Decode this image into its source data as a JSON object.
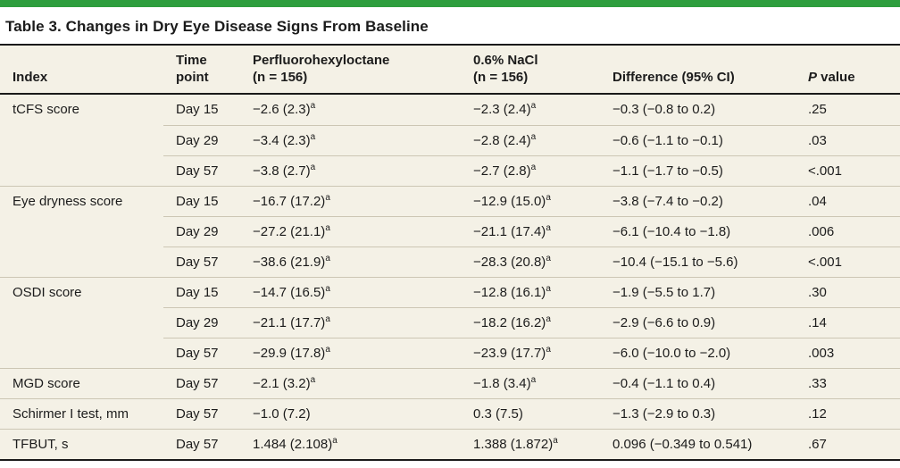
{
  "theme": {
    "accent_green": "#2e9e3e",
    "table_background": "#f4f1e6",
    "rule_color": "#1a1a1a",
    "row_separator": "#ccc6b4"
  },
  "title": "Table 3. Changes in Dry Eye Disease Signs From Baseline",
  "columns": {
    "index": "Index",
    "time_point": "Time point",
    "pfh_name": "Perfluorohexyloctane",
    "pfh_n": "(n = 156)",
    "nacl_name": "0.6% NaCl",
    "nacl_n": "(n = 156)",
    "difference": "Difference (95% CI)",
    "p_label_italic": "P",
    "p_label_rest": " value"
  },
  "rows": [
    {
      "index": "tCFS score",
      "time": "Day 15",
      "pfh": "−2.6 (2.3)",
      "pfh_sup": "a",
      "nacl": "−2.3 (2.4)",
      "nacl_sup": "a",
      "diff": "−0.3 (−0.8 to 0.2)",
      "p": ".25"
    },
    {
      "index": "",
      "time": "Day 29",
      "pfh": "−3.4 (2.3)",
      "pfh_sup": "a",
      "nacl": "−2.8 (2.4)",
      "nacl_sup": "a",
      "diff": "−0.6 (−1.1 to −0.1)",
      "p": ".03"
    },
    {
      "index": "",
      "time": "Day 57",
      "pfh": "−3.8 (2.7)",
      "pfh_sup": "a",
      "nacl": "−2.7 (2.8)",
      "nacl_sup": "a",
      "diff": "−1.1 (−1.7 to −0.5)",
      "p": "<.001"
    },
    {
      "index": "Eye dryness score",
      "time": "Day 15",
      "pfh": "−16.7 (17.2)",
      "pfh_sup": "a",
      "nacl": "−12.9 (15.0)",
      "nacl_sup": "a",
      "diff": "−3.8 (−7.4 to −0.2)",
      "p": ".04"
    },
    {
      "index": "",
      "time": "Day 29",
      "pfh": "−27.2 (21.1)",
      "pfh_sup": "a",
      "nacl": "−21.1 (17.4)",
      "nacl_sup": "a",
      "diff": "−6.1 (−10.4 to −1.8)",
      "p": ".006"
    },
    {
      "index": "",
      "time": "Day 57",
      "pfh": "−38.6 (21.9)",
      "pfh_sup": "a",
      "nacl": "−28.3 (20.8)",
      "nacl_sup": "a",
      "diff": "−10.4 (−15.1 to −5.6)",
      "p": "<.001"
    },
    {
      "index": "OSDI score",
      "time": "Day 15",
      "pfh": "−14.7 (16.5)",
      "pfh_sup": "a",
      "nacl": "−12.8 (16.1)",
      "nacl_sup": "a",
      "diff": "−1.9 (−5.5 to 1.7)",
      "p": ".30"
    },
    {
      "index": "",
      "time": "Day 29",
      "pfh": "−21.1 (17.7)",
      "pfh_sup": "a",
      "nacl": "−18.2 (16.2)",
      "nacl_sup": "a",
      "diff": "−2.9 (−6.6 to 0.9)",
      "p": ".14"
    },
    {
      "index": "",
      "time": "Day 57",
      "pfh": "−29.9 (17.8)",
      "pfh_sup": "a",
      "nacl": "−23.9 (17.7)",
      "nacl_sup": "a",
      "diff": "−6.0 (−10.0 to −2.0)",
      "p": ".003"
    },
    {
      "index": "MGD score",
      "time": "Day 57",
      "pfh": "−2.1 (3.2)",
      "pfh_sup": "a",
      "nacl": "−1.8 (3.4)",
      "nacl_sup": "a",
      "diff": "−0.4 (−1.1 to 0.4)",
      "p": ".33"
    },
    {
      "index": "Schirmer I test, mm",
      "time": "Day 57",
      "pfh": "−1.0 (7.2)",
      "pfh_sup": "",
      "nacl": "0.3 (7.5)",
      "nacl_sup": "",
      "diff": "−1.3 (−2.9 to 0.3)",
      "p": ".12"
    },
    {
      "index": "TFBUT, s",
      "time": "Day 57",
      "pfh": "1.484 (2.108)",
      "pfh_sup": "a",
      "nacl": "1.388 (1.872)",
      "nacl_sup": "a",
      "diff": "0.096 (−0.349 to 0.541)",
      "p": ".67"
    }
  ]
}
